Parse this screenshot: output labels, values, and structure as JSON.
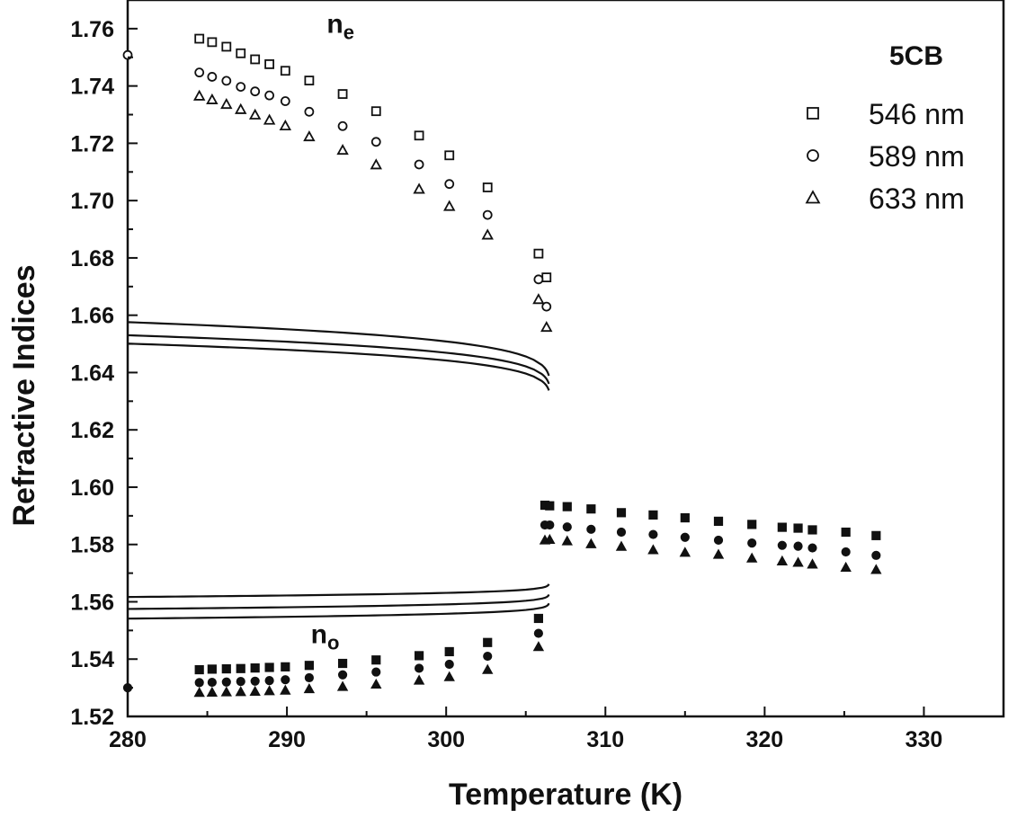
{
  "chart_data": {
    "type": "scatter",
    "title": "",
    "xlabel": "Temperature (K)",
    "ylabel": "Refractive Indices",
    "xlim": [
      280,
      335
    ],
    "ylim": [
      1.52,
      1.77
    ],
    "xticks": [
      280,
      290,
      300,
      310,
      320,
      330
    ],
    "yticks": [
      1.52,
      1.54,
      1.56,
      1.58,
      1.6,
      1.62,
      1.64,
      1.66,
      1.68,
      1.7,
      1.72,
      1.74,
      1.76
    ],
    "grid": false,
    "legend": {
      "title": "5CB",
      "placement": "top-right",
      "entries": [
        {
          "label": "546 nm",
          "marker": "square"
        },
        {
          "label": "589 nm",
          "marker": "circle"
        },
        {
          "label": "633 nm",
          "marker": "triangle"
        }
      ]
    },
    "annotations": [
      {
        "text": "n",
        "sub": "e",
        "x": 292.5,
        "y": 1.7585
      },
      {
        "text": "n",
        "sub": "o",
        "x": 291.5,
        "y": 1.5455
      }
    ],
    "fit_curves": {
      "tc": 306.45,
      "ne": [
        {
          "A": 1.63,
          "B": 0.045,
          "C": 0.0003
        },
        {
          "A": 1.628,
          "B": 0.0408,
          "C": 0.0003
        },
        {
          "A": 1.626,
          "B": 0.0393,
          "C": 0.0003
        }
      ],
      "no": [
        {
          "A": 1.5675,
          "B": -0.0095,
          "C": 5e-05
        },
        {
          "A": 1.564,
          "B": -0.0106,
          "C": 5e-05
        },
        {
          "A": 1.561,
          "B": -0.0112,
          "C": 5e-05
        }
      ]
    },
    "series": [
      {
        "marker": "square",
        "fill": "open",
        "branch": "ne",
        "x": [
          284.5,
          285.3,
          286.2,
          287.1,
          288.0,
          288.9,
          289.9,
          291.4,
          293.5,
          295.6,
          298.3,
          300.2,
          302.6,
          305.8,
          306.3
        ],
        "y": [
          1.7565,
          1.7553,
          1.7537,
          1.7514,
          1.7493,
          1.7476,
          1.7453,
          1.7419,
          1.7372,
          1.7312,
          1.7227,
          1.7158,
          1.7046,
          1.6815,
          1.6732
        ]
      },
      {
        "marker": "circle",
        "fill": "open",
        "branch": "ne",
        "x": [
          280.0,
          284.5,
          285.3,
          286.2,
          287.1,
          288.0,
          288.9,
          289.9,
          291.4,
          293.5,
          295.6,
          298.3,
          300.2,
          302.6,
          305.8,
          306.3
        ],
        "y": [
          1.7508,
          1.7447,
          1.7432,
          1.7418,
          1.7397,
          1.7381,
          1.7367,
          1.7347,
          1.731,
          1.726,
          1.7205,
          1.7126,
          1.7058,
          1.695,
          1.6725,
          1.663
        ]
      },
      {
        "marker": "triangle",
        "fill": "open",
        "branch": "ne",
        "x": [
          284.5,
          285.3,
          286.2,
          287.1,
          288.0,
          288.9,
          289.9,
          291.4,
          293.5,
          295.6,
          298.3,
          300.2,
          302.6,
          305.8,
          306.3
        ],
        "y": [
          1.7365,
          1.7352,
          1.7336,
          1.7318,
          1.7299,
          1.7281,
          1.7261,
          1.7223,
          1.7176,
          1.7125,
          1.704,
          1.698,
          1.688,
          1.6655,
          1.6558
        ]
      },
      {
        "marker": "square",
        "fill": "filled",
        "branch": "no",
        "x": [
          284.5,
          285.3,
          286.2,
          287.1,
          288.0,
          288.9,
          289.9,
          291.4,
          293.5,
          295.6,
          298.3,
          300.2,
          302.6,
          305.8,
          306.2,
          306.5,
          307.6,
          309.1,
          311.0,
          313.0,
          315.0,
          317.1,
          319.2,
          321.1,
          322.1,
          323.0,
          325.1,
          327.0
        ],
        "y": [
          1.5363,
          1.5365,
          1.5366,
          1.5367,
          1.5369,
          1.5371,
          1.5373,
          1.5378,
          1.5385,
          1.5397,
          1.5412,
          1.5426,
          1.5458,
          1.5542,
          1.5937,
          1.5935,
          1.5932,
          1.5924,
          1.5911,
          1.5903,
          1.5893,
          1.5881,
          1.587,
          1.586,
          1.5857,
          1.5851,
          1.5843,
          1.5831
        ]
      },
      {
        "marker": "circle",
        "fill": "filled",
        "branch": "no",
        "x": [
          280.0,
          284.5,
          285.3,
          286.2,
          287.1,
          288.0,
          288.9,
          289.9,
          291.4,
          293.5,
          295.6,
          298.3,
          300.2,
          302.6,
          305.8,
          306.2,
          306.5,
          307.6,
          309.1,
          311.0,
          313.0,
          315.0,
          317.1,
          319.2,
          321.1,
          322.1,
          323.0,
          325.1,
          327.0
        ],
        "y": [
          1.53,
          1.5318,
          1.5319,
          1.532,
          1.5322,
          1.5323,
          1.5325,
          1.5328,
          1.5335,
          1.5345,
          1.5355,
          1.5368,
          1.5382,
          1.541,
          1.549,
          1.5868,
          1.5868,
          1.5861,
          1.5853,
          1.5843,
          1.5835,
          1.5825,
          1.5815,
          1.5805,
          1.5797,
          1.5794,
          1.5788,
          1.5774,
          1.5762
        ]
      },
      {
        "marker": "triangle",
        "fill": "filled",
        "branch": "no",
        "x": [
          284.5,
          285.3,
          286.2,
          287.1,
          288.0,
          288.9,
          289.9,
          291.4,
          293.5,
          295.6,
          298.3,
          300.2,
          302.6,
          305.8,
          306.2,
          306.5,
          307.6,
          309.1,
          311.0,
          313.0,
          315.0,
          317.1,
          319.2,
          321.1,
          322.1,
          323.0,
          325.1,
          327.0
        ],
        "y": [
          1.5283,
          1.5284,
          1.5285,
          1.5286,
          1.5287,
          1.5289,
          1.5291,
          1.5296,
          1.5304,
          1.5312,
          1.5326,
          1.5338,
          1.5363,
          1.5443,
          1.5815,
          1.5817,
          1.5812,
          1.5802,
          1.5793,
          1.5781,
          1.5772,
          1.5765,
          1.5752,
          1.5742,
          1.5737,
          1.5731,
          1.572,
          1.5712
        ]
      }
    ]
  }
}
